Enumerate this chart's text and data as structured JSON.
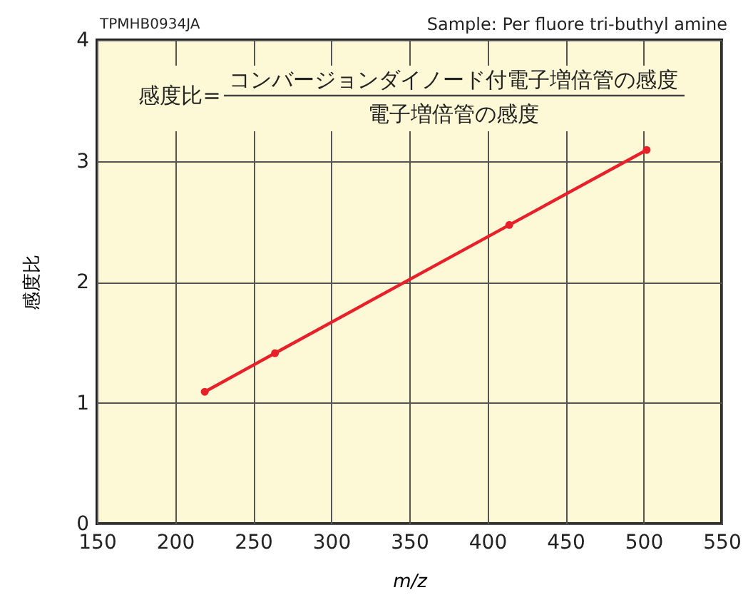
{
  "chart_data": {
    "type": "line",
    "x": [
      219,
      264,
      414,
      502
    ],
    "series": [
      {
        "color": "#e8202a",
        "values": [
          1.09,
          1.41,
          2.47,
          3.09
        ]
      }
    ],
    "xlabel": "m/z",
    "ylabel": "感度比",
    "xlim": [
      150,
      550
    ],
    "xticks": [
      150,
      200,
      250,
      300,
      350,
      400,
      450,
      500,
      550
    ],
    "ylim": [
      0,
      4
    ],
    "yticks": [
      0,
      1,
      2,
      3,
      4
    ],
    "grid": true,
    "marker": "circle",
    "line_style": "solid",
    "annotations": [
      "TPMHB0934JA",
      "Sample: Per fluore tri-buthyl amine",
      "感度比=",
      "コンバージョンダイノード付電子増倍管の感度",
      "電子増倍管の感度"
    ]
  }
}
